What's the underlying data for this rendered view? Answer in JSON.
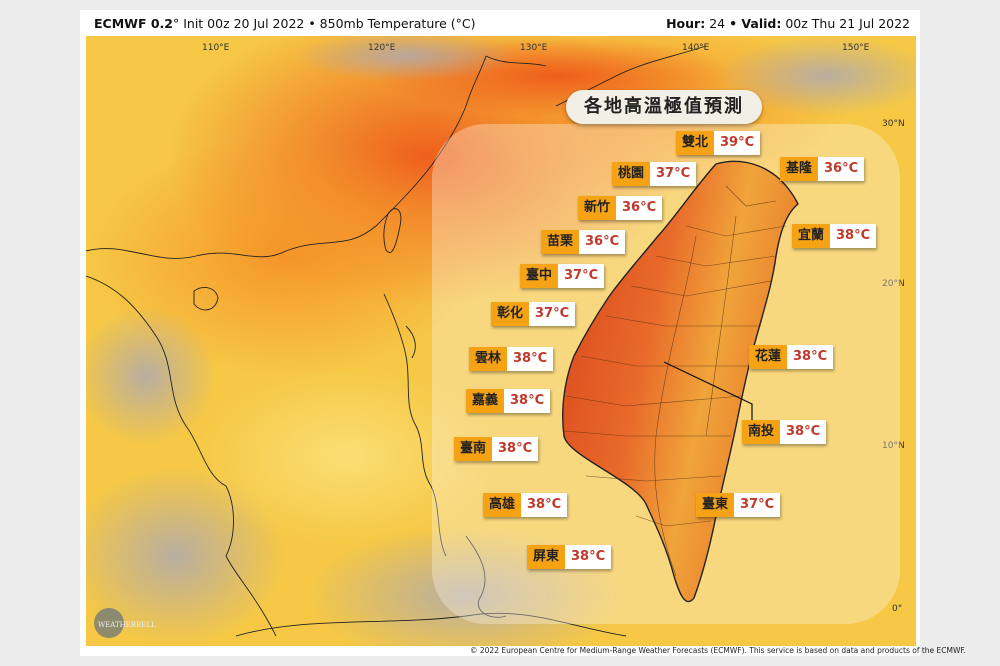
{
  "header": {
    "model": "ECMWF 0.2",
    "init_text": "° Init 00z 20 Jul 2022 • 850mb Temperature (°C)",
    "hour_label": "Hour:",
    "hour_value": "24",
    "valid_label": "• Valid:",
    "valid_value": "00z Thu 21 Jul 2022"
  },
  "longitudes": [
    "110°E",
    "120°E",
    "130°E",
    "140°E",
    "150°E"
  ],
  "latitudes": [
    "30°N",
    "20°N",
    "10°N",
    "0°"
  ],
  "panel": {
    "title": "各地高溫極值預測",
    "cities": [
      {
        "name": "雙北",
        "temp": "39°C"
      },
      {
        "name": "基隆",
        "temp": "36°C"
      },
      {
        "name": "桃園",
        "temp": "37°C"
      },
      {
        "name": "新竹",
        "temp": "36°C"
      },
      {
        "name": "宜蘭",
        "temp": "38°C"
      },
      {
        "name": "苗栗",
        "temp": "36°C"
      },
      {
        "name": "臺中",
        "temp": "37°C"
      },
      {
        "name": "彰化",
        "temp": "37°C"
      },
      {
        "name": "雲林",
        "temp": "38°C"
      },
      {
        "name": "花蓮",
        "temp": "38°C"
      },
      {
        "name": "嘉義",
        "temp": "38°C"
      },
      {
        "name": "南投",
        "temp": "38°C"
      },
      {
        "name": "臺南",
        "temp": "38°C"
      },
      {
        "name": "高雄",
        "temp": "38°C"
      },
      {
        "name": "臺東",
        "temp": "37°C"
      },
      {
        "name": "屏東",
        "temp": "38°C"
      }
    ]
  },
  "logo_text": "WEATHERBELL",
  "footer": "© 2022 European Centre for Medium-Range Weather Forecasts (ECMWF). This service is based on data and products of the ECMWF.",
  "colors": {
    "heat_dark": "#e8561a",
    "heat_mid": "#f59a2a",
    "heat_light": "#f7c94a",
    "label_orange": "#f5a315",
    "temp_red": "#c0392b"
  }
}
